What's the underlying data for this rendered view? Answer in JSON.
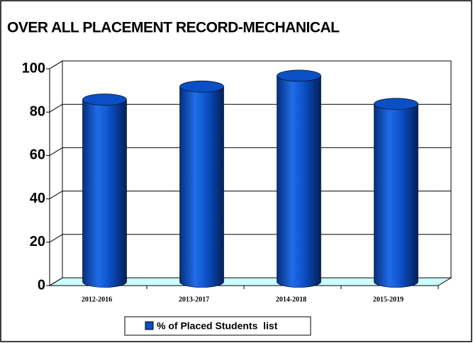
{
  "chart_data": {
    "type": "bar",
    "title": "OVER ALL PLACEMENT RECORD-MECHANICAL",
    "categories": [
      "2012-2016",
      "2013-2017",
      "2014-2018",
      "2015-2019"
    ],
    "series": [
      {
        "name": "% of Placed Students  list",
        "color": "#0a4fc4",
        "values": [
          84,
          90,
          95,
          82
        ]
      }
    ],
    "ylim": [
      0,
      100
    ],
    "yticks": [
      0,
      20,
      40,
      60,
      80,
      100
    ],
    "grid": true,
    "legend": "bottom"
  }
}
